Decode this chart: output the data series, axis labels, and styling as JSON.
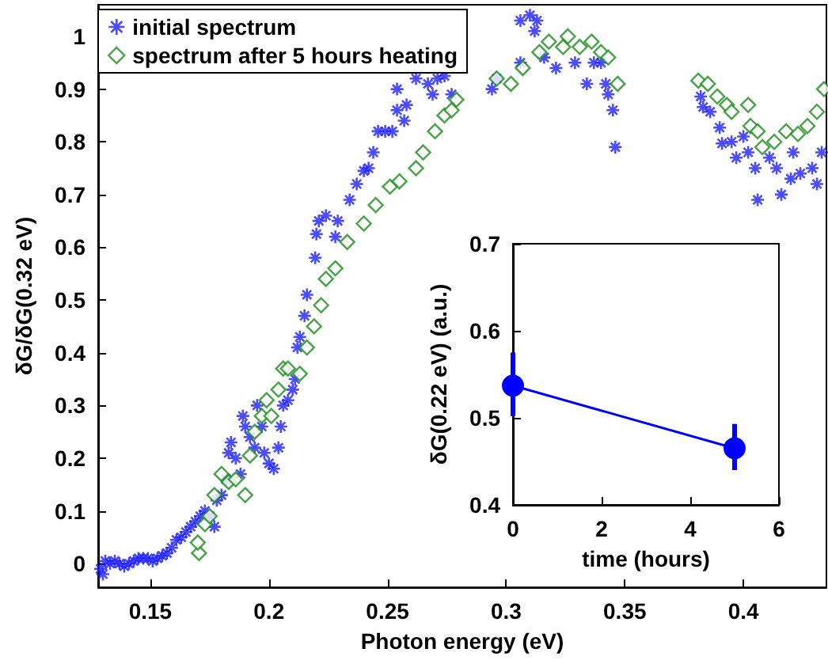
{
  "chart_data": [
    {
      "type": "scatter",
      "xlabel": "Photon energy (eV)",
      "ylabel": "δG/δG(0.32 eV)",
      "xlim": [
        0.128,
        0.435
      ],
      "ylim": [
        -0.045,
        1.06
      ],
      "xticks": [
        0.15,
        0.2,
        0.25,
        0.3,
        0.35,
        0.4
      ],
      "yticks": [
        0,
        0.1,
        0.2,
        0.3,
        0.4,
        0.5,
        0.6,
        0.7,
        0.8,
        0.9,
        1
      ],
      "grid": false,
      "legend": "top left",
      "series": [
        {
          "name": "initial spectrum",
          "color": "#1f1fff",
          "marker": "cross",
          "x": [
            0.129,
            0.13,
            0.131,
            0.133,
            0.135,
            0.137,
            0.139,
            0.141,
            0.143,
            0.145,
            0.147,
            0.149,
            0.151,
            0.153,
            0.155,
            0.157,
            0.159,
            0.161,
            0.163,
            0.165,
            0.167,
            0.169,
            0.171,
            0.173,
            0.175,
            0.177,
            0.178,
            0.18,
            0.182,
            0.183,
            0.184,
            0.186,
            0.188,
            0.189,
            0.19,
            0.192,
            0.194,
            0.195,
            0.197,
            0.198,
            0.2,
            0.202,
            0.204,
            0.205,
            0.206,
            0.208,
            0.21,
            0.211,
            0.212,
            0.213,
            0.215,
            0.216,
            0.2195,
            0.22,
            0.221,
            0.224,
            0.228,
            0.229,
            0.234,
            0.237,
            0.24,
            0.242,
            0.244,
            0.246,
            0.249,
            0.252,
            0.254,
            0.254,
            0.257,
            0.258,
            0.262,
            0.267,
            0.269,
            0.271,
            0.274,
            0.277,
            0.294,
            0.296,
            0.306,
            0.31,
            0.313,
            0.312,
            0.306,
            0.316,
            0.321,
            0.329,
            0.334,
            0.337,
            0.34,
            0.342,
            0.343,
            0.345,
            0.346,
            0.382,
            0.383,
            0.386,
            0.39,
            0.391,
            0.395,
            0.397,
            0.4,
            0.402,
            0.405,
            0.406,
            0.411,
            0.414,
            0.416,
            0.42,
            0.421,
            0.424,
            0.429,
            0.431,
            0.433
          ],
          "values": [
            -0.01,
            -0.02,
            0.005,
            0.0,
            0.005,
            0.0,
            -0.005,
            0.0,
            0.005,
            0.01,
            0.01,
            0.01,
            0.005,
            0.01,
            0.015,
            0.02,
            0.03,
            0.045,
            0.05,
            0.06,
            0.07,
            0.08,
            0.09,
            0.1,
            0.09,
            0.07,
            0.12,
            0.13,
            0.16,
            0.21,
            0.23,
            0.2,
            0.17,
            0.28,
            0.26,
            0.24,
            0.22,
            0.3,
            0.26,
            0.21,
            0.19,
            0.18,
            0.22,
            0.26,
            0.3,
            0.31,
            0.33,
            0.35,
            0.41,
            0.43,
            0.47,
            0.51,
            0.58,
            0.625,
            0.65,
            0.66,
            0.62,
            0.65,
            0.69,
            0.72,
            0.745,
            0.75,
            0.78,
            0.82,
            0.82,
            0.82,
            0.86,
            0.9,
            0.84,
            0.87,
            0.92,
            0.91,
            0.89,
            0.92,
            0.925,
            0.89,
            0.9,
            0.92,
            1.03,
            1.04,
            1.03,
            1.01,
            0.95,
            0.96,
            0.94,
            0.95,
            0.91,
            0.95,
            0.95,
            0.91,
            0.89,
            0.86,
            0.79,
            0.886,
            0.866,
            0.857,
            0.827,
            0.797,
            0.8,
            0.77,
            0.81,
            0.78,
            0.75,
            0.69,
            0.77,
            0.75,
            0.7,
            0.73,
            0.78,
            0.74,
            0.75,
            0.72,
            0.78
          ]
        },
        {
          "name": "spectrum after 5 hours heating",
          "color": "#1a8c1a",
          "marker": "diamond",
          "x": [
            0.1705,
            0.17,
            0.173,
            0.175,
            0.177,
            0.18,
            0.183,
            0.186,
            0.19,
            0.192,
            0.194,
            0.197,
            0.199,
            0.201,
            0.204,
            0.206,
            0.208,
            0.213,
            0.216,
            0.219,
            0.222,
            0.224,
            0.228,
            0.233,
            0.24,
            0.245,
            0.251,
            0.255,
            0.262,
            0.265,
            0.27,
            0.274,
            0.277,
            0.279,
            0.296,
            0.302,
            0.307,
            0.314,
            0.318,
            0.324,
            0.326,
            0.331,
            0.336,
            0.34,
            0.343,
            0.347,
            0.381,
            0.385,
            0.389,
            0.393,
            0.395,
            0.402,
            0.403,
            0.406,
            0.408,
            0.413,
            0.418,
            0.423,
            0.427,
            0.431,
            0.434
          ],
          "values": [
            0.02,
            0.04,
            0.075,
            0.09,
            0.13,
            0.17,
            0.155,
            0.16,
            0.13,
            0.205,
            0.25,
            0.28,
            0.31,
            0.28,
            0.33,
            0.37,
            0.37,
            0.36,
            0.41,
            0.45,
            0.49,
            0.54,
            0.56,
            0.61,
            0.645,
            0.68,
            0.715,
            0.725,
            0.75,
            0.78,
            0.82,
            0.85,
            0.86,
            0.88,
            0.92,
            0.91,
            0.94,
            0.97,
            0.99,
            0.98,
            1.0,
            0.98,
            0.99,
            0.97,
            0.96,
            0.91,
            0.916,
            0.91,
            0.886,
            0.87,
            0.857,
            0.87,
            0.83,
            0.82,
            0.79,
            0.8,
            0.82,
            0.815,
            0.83,
            0.857,
            0.9
          ]
        }
      ]
    },
    {
      "type": "line",
      "xlabel": "time (hours)",
      "ylabel": "δG(0.22 eV) (a.u.)",
      "xlim": [
        0,
        6
      ],
      "ylim": [
        0.4,
        0.7
      ],
      "xticks": [
        0,
        2,
        4,
        6
      ],
      "yticks": [
        0.4,
        0.5,
        0.6,
        0.7
      ],
      "grid": false,
      "marker": "circle",
      "series": [
        {
          "color": "#0000ff",
          "x": [
            0,
            5
          ],
          "values": [
            0.537,
            0.465
          ],
          "errors": [
            [
              0.502,
              0.575
            ],
            [
              0.44,
              0.493
            ]
          ]
        }
      ]
    }
  ]
}
